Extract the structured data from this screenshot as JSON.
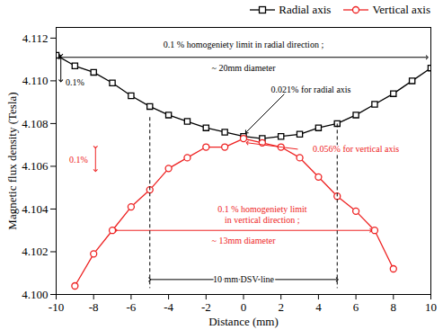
{
  "chart_data": {
    "type": "line",
    "xlabel": "Distance (mm)",
    "ylabel": "Magnetic flux density (Tesla)",
    "xlim": [
      -10,
      10
    ],
    "xticks": [
      -10,
      -8,
      -6,
      -4,
      -2,
      0,
      2,
      4,
      6,
      8,
      10
    ],
    "ylim": [
      4.1,
      4.1125
    ],
    "yticks": [
      {
        "value": 4.1,
        "label": "4.100"
      },
      {
        "value": 4.102,
        "label": "4.102"
      },
      {
        "value": 4.104,
        "label": "4.104"
      },
      {
        "value": 4.106,
        "label": "4.106"
      },
      {
        "value": 4.108,
        "label": "4.108"
      },
      {
        "value": 4.11,
        "label": "4.110"
      },
      {
        "value": 4.112,
        "label": "4.112"
      }
    ],
    "grid": false,
    "legend": "top right",
    "series": [
      {
        "name": "Radial axis",
        "color": "#000000",
        "marker": "square",
        "x": [
          -10,
          -9,
          -8,
          -7,
          -6,
          -5,
          -4,
          -3,
          -2,
          -1,
          0,
          1,
          2,
          3,
          4,
          5,
          6,
          7,
          8,
          9,
          10
        ],
        "values": [
          4.1112,
          4.1107,
          4.1104,
          4.1099,
          4.1093,
          4.1088,
          4.1084,
          4.1081,
          4.1078,
          4.1076,
          4.1074,
          4.1073,
          4.1074,
          4.1075,
          4.1078,
          4.108,
          4.1084,
          4.1089,
          4.1094,
          4.11,
          4.1106
        ]
      },
      {
        "name": "Vertical axis",
        "color": "#ee2222",
        "marker": "circle",
        "x": [
          -9,
          -8,
          -7,
          -6,
          -5,
          -4,
          -3,
          -2,
          -1,
          0,
          1,
          2,
          3,
          4,
          5,
          6,
          7,
          8
        ],
        "values": [
          4.1004,
          4.1019,
          4.103,
          4.1041,
          4.1049,
          4.1059,
          4.1064,
          4.1069,
          4.1069,
          4.1073,
          4.1071,
          4.1069,
          4.1064,
          4.1055,
          4.1046,
          4.1039,
          4.103,
          4.1012
        ]
      }
    ],
    "annotations": [
      {
        "text": "0.1 % homogeniety limit in radial direction ;",
        "x": 0,
        "y": 4.1117,
        "color": "#000000"
      },
      {
        "text": "~ 20mm diameter",
        "x": 0,
        "y": 4.1106,
        "color": "#000000"
      },
      {
        "text": "0.1%",
        "x": -9.0,
        "y": 4.1099,
        "color": "#000000"
      },
      {
        "text": "0.021% for radial axis",
        "x": 3.6,
        "y": 4.1096,
        "color": "#000000"
      },
      {
        "text": "0.1%",
        "x": -8.8,
        "y": 4.1063,
        "color": "#ee2222"
      },
      {
        "text": "0.056% for vertical axis",
        "x": 6.0,
        "y": 4.1068,
        "color": "#ee2222"
      },
      {
        "text": "0.1 % homogeniety limit",
        "x": 1.0,
        "y": 4.104,
        "color": "#ee2222"
      },
      {
        "text": "in vertical direction ;",
        "x": 1.0,
        "y": 4.1035,
        "color": "#ee2222"
      },
      {
        "text": "~ 13mm diameter",
        "x": 0,
        "y": 4.1025,
        "color": "#ee2222"
      },
      {
        "text": "10 mm DSV line",
        "x": 0,
        "y": 4.1007,
        "color": "#000000"
      }
    ],
    "arrows": [
      {
        "x1": -9.8,
        "y1": 4.1111,
        "x2": 9.8,
        "y2": 4.1111,
        "color": "#000000",
        "marker": "both",
        "line_style": "solid"
      },
      {
        "x1": -9.75,
        "y1": 4.1112,
        "x2": -9.75,
        "y2": 4.11,
        "color": "#000000",
        "marker": "both",
        "line_style": "solid"
      },
      {
        "x1": 2.2,
        "y1": 4.1094,
        "x2": 0.15,
        "y2": 4.1076,
        "color": "#000000",
        "marker": "end",
        "line_style": "solid"
      },
      {
        "x1": -7.9,
        "y1": 4.1069,
        "x2": -7.9,
        "y2": 4.1058,
        "color": "#ee2222",
        "marker": "both",
        "line_style": "solid"
      },
      {
        "x1": 2.9,
        "y1": 4.1068,
        "x2": 0.2,
        "y2": 4.1071,
        "color": "#ee2222",
        "marker": "end",
        "line_style": "solid"
      },
      {
        "x1": -6.8,
        "y1": 4.103,
        "x2": 6.8,
        "y2": 4.103,
        "color": "#ee2222",
        "marker": "both",
        "line_style": "solid"
      },
      {
        "x1": -5,
        "y1": 4.1083,
        "x2": -5,
        "y2": 4.1003,
        "color": "#000000",
        "marker": "none",
        "line_style": "dashed"
      },
      {
        "x1": 5,
        "y1": 4.108,
        "x2": 5,
        "y2": 4.1003,
        "color": "#000000",
        "marker": "none",
        "line_style": "dashed"
      },
      {
        "x1": -5,
        "y1": 4.1007,
        "x2": 5,
        "y2": 4.1007,
        "color": "#000000",
        "marker": "both",
        "line_style": "solid"
      }
    ]
  }
}
